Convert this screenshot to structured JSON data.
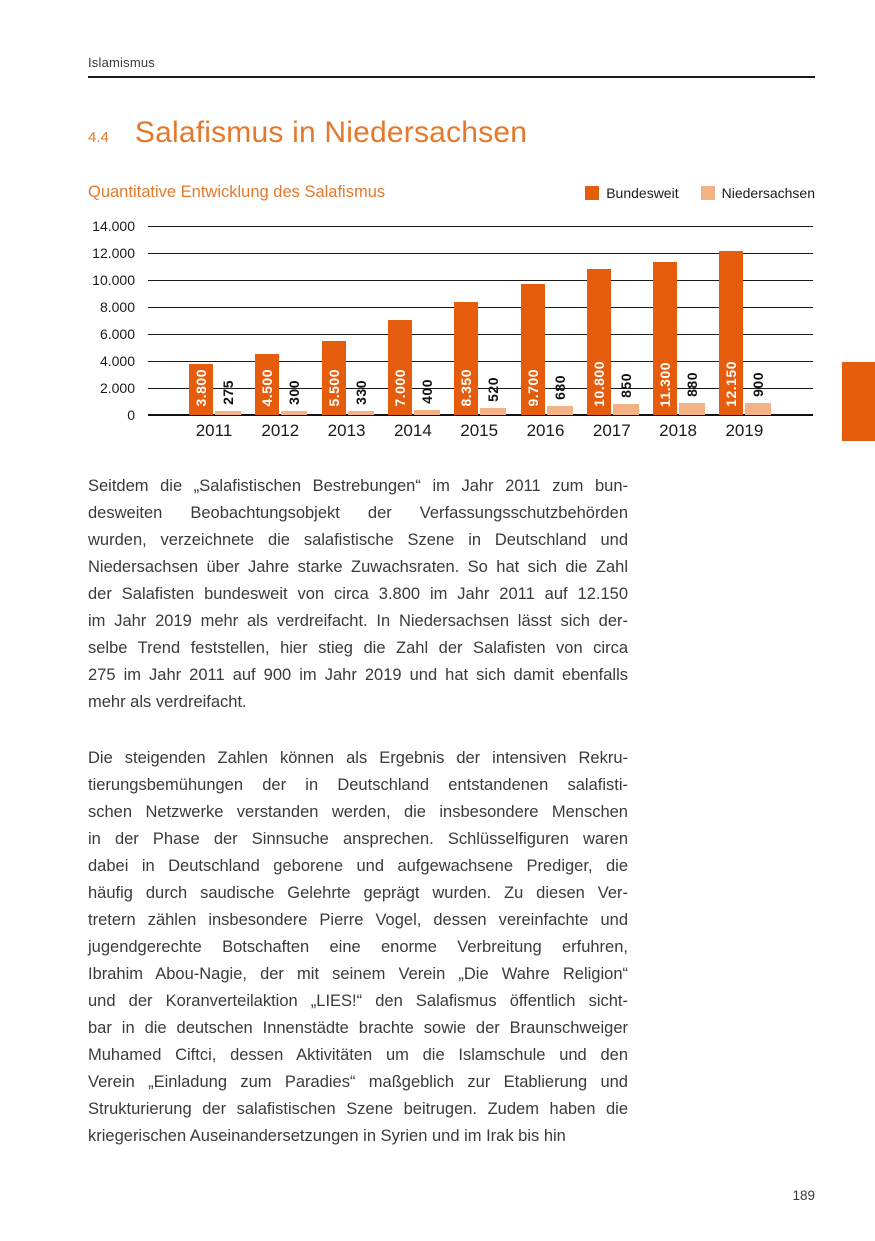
{
  "colors": {
    "accent": "#E55C0D",
    "accent_light": "#F3B283",
    "heading": "#E5782A",
    "text": "#3A3A39"
  },
  "header": {
    "section_label": "Islamismus"
  },
  "heading": {
    "number": "4.4",
    "title": "Salafismus in Niedersachsen"
  },
  "chart_data": {
    "type": "bar",
    "title": "Quantitative Entwicklung des Salafismus",
    "categories": [
      "2011",
      "2012",
      "2013",
      "2014",
      "2015",
      "2016",
      "2017",
      "2018",
      "2019"
    ],
    "series": [
      {
        "name": "Bundesweit",
        "color": "#E55C0D",
        "values": [
          3800,
          4500,
          5500,
          7000,
          8350,
          9700,
          10800,
          11300,
          12150
        ],
        "labels": [
          "3.800",
          "4.500",
          "5.500",
          "7.000",
          "8.350",
          "9.700",
          "10.800",
          "11.300",
          "12.150"
        ],
        "label_color": "#FFFFFF"
      },
      {
        "name": "Niedersachsen",
        "color": "#F3B283",
        "values": [
          275,
          300,
          330,
          400,
          520,
          680,
          850,
          880,
          900
        ],
        "labels": [
          "275",
          "300",
          "330",
          "400",
          "520",
          "680",
          "850",
          "880",
          "900"
        ],
        "label_color": "#111111"
      }
    ],
    "ylim": [
      0,
      14000
    ],
    "ytick_step": 2000,
    "ytick_labels": [
      "14.000",
      "12.000",
      "10.000",
      "8.000",
      "6.000",
      "4.000",
      "2.000",
      "0"
    ],
    "grid": true,
    "legend_position": "top-right"
  },
  "document": {
    "paragraphs": [
      [
        "Seitdem die „Salafistischen Bestrebungen“ im Jahr 2011 zum bun-",
        "desweiten Beobachtungsobjekt der Verfassungsschutzbehörden",
        "wurden, verzeichnete die salafistische Szene in Deutschland und",
        "Niedersachsen über Jahre starke Zuwachsraten. So hat sich die Zahl",
        "der Salafisten bundesweit von circa 3.800 im Jahr 2011 auf 12.150",
        "im Jahr 2019 mehr als verdreifacht. In Niedersachsen lässt sich der-",
        "selbe Trend feststellen, hier stieg die Zahl der Salafisten von circa",
        "275 im Jahr 2011 auf 900 im Jahr 2019 und hat sich damit ebenfalls",
        "mehr als verdreifacht."
      ],
      [
        "Die steigenden Zahlen können als Ergebnis der intensiven Rekru-",
        "tierungsbemühungen der in Deutschland entstandenen salafisti-",
        "schen Netzwerke verstanden werden, die insbesondere Menschen",
        "in der Phase der Sinnsuche ansprechen. Schlüsselfiguren waren",
        "dabei in Deutschland geborene und aufgewachsene Prediger, die",
        "häufig durch saudische Gelehrte geprägt wurden. Zu diesen Ver-",
        "tretern zählen insbesondere Pierre Vogel, dessen vereinfachte und",
        "jugendgerechte Botschaften eine enorme Verbreitung erfuhren,",
        "Ibrahim Abou-Nagie, der mit seinem Verein „Die Wahre Religion“",
        "und der Koranverteilaktion „LIES!“ den Salafismus öffentlich sicht-",
        "bar in die deutschen Innenstädte brachte sowie der Braunschweiger",
        "Muhamed Ciftci, dessen Aktivitäten um die Islamschule und den",
        "Verein „Einladung zum Paradies“ maßgeblich zur Etablierung und",
        "Strukturierung der salafistischen Szene beitrugen. Zudem haben die",
        "kriegerischen Auseinandersetzungen in Syrien und im Irak bis hin"
      ]
    ]
  },
  "footer": {
    "page_number": "189"
  }
}
